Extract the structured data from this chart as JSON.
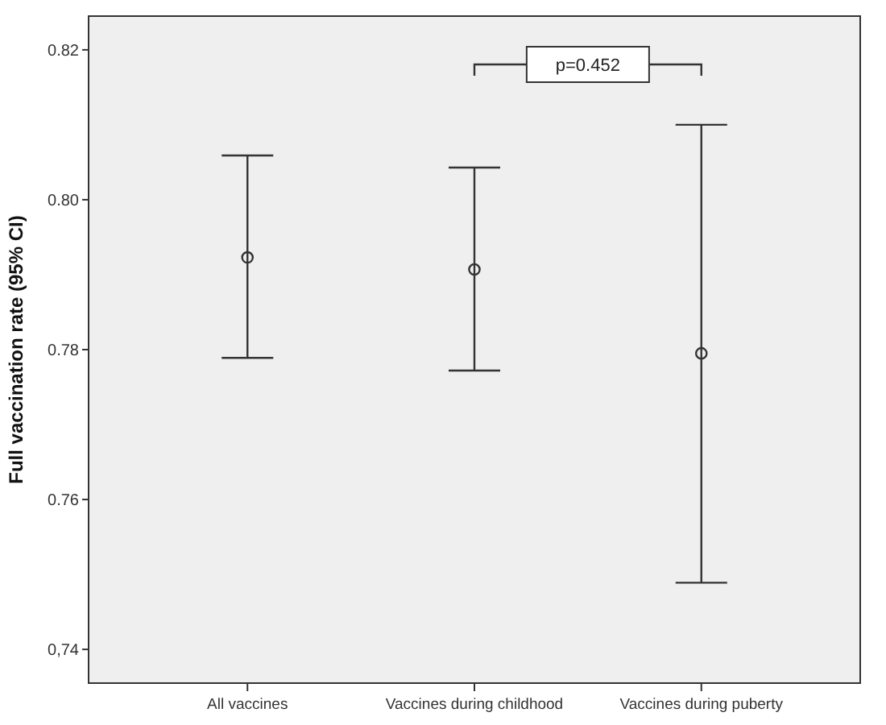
{
  "chart_data": {
    "type": "scatter",
    "ylabel": "Full vaccination rate (95% CI)",
    "categories": [
      "All vaccines",
      "Vaccines during childhood",
      "Vaccines during puberty"
    ],
    "values": [
      0.7923,
      0.7907,
      0.7795
    ],
    "errors": [
      [
        0.7789,
        0.8059
      ],
      [
        0.7772,
        0.8043
      ],
      [
        0.7489,
        0.81
      ]
    ],
    "color": "#333333",
    "marker": "circle",
    "grid": false,
    "ylim": [
      0.7355,
      0.8245
    ],
    "yticks": [
      {
        "value": 0.74,
        "label": "0,74"
      },
      0.76,
      0.78,
      {
        "value": 0.8,
        "label": "0.80"
      },
      0.82
    ],
    "annotations": [
      "p=0.452"
    ]
  }
}
